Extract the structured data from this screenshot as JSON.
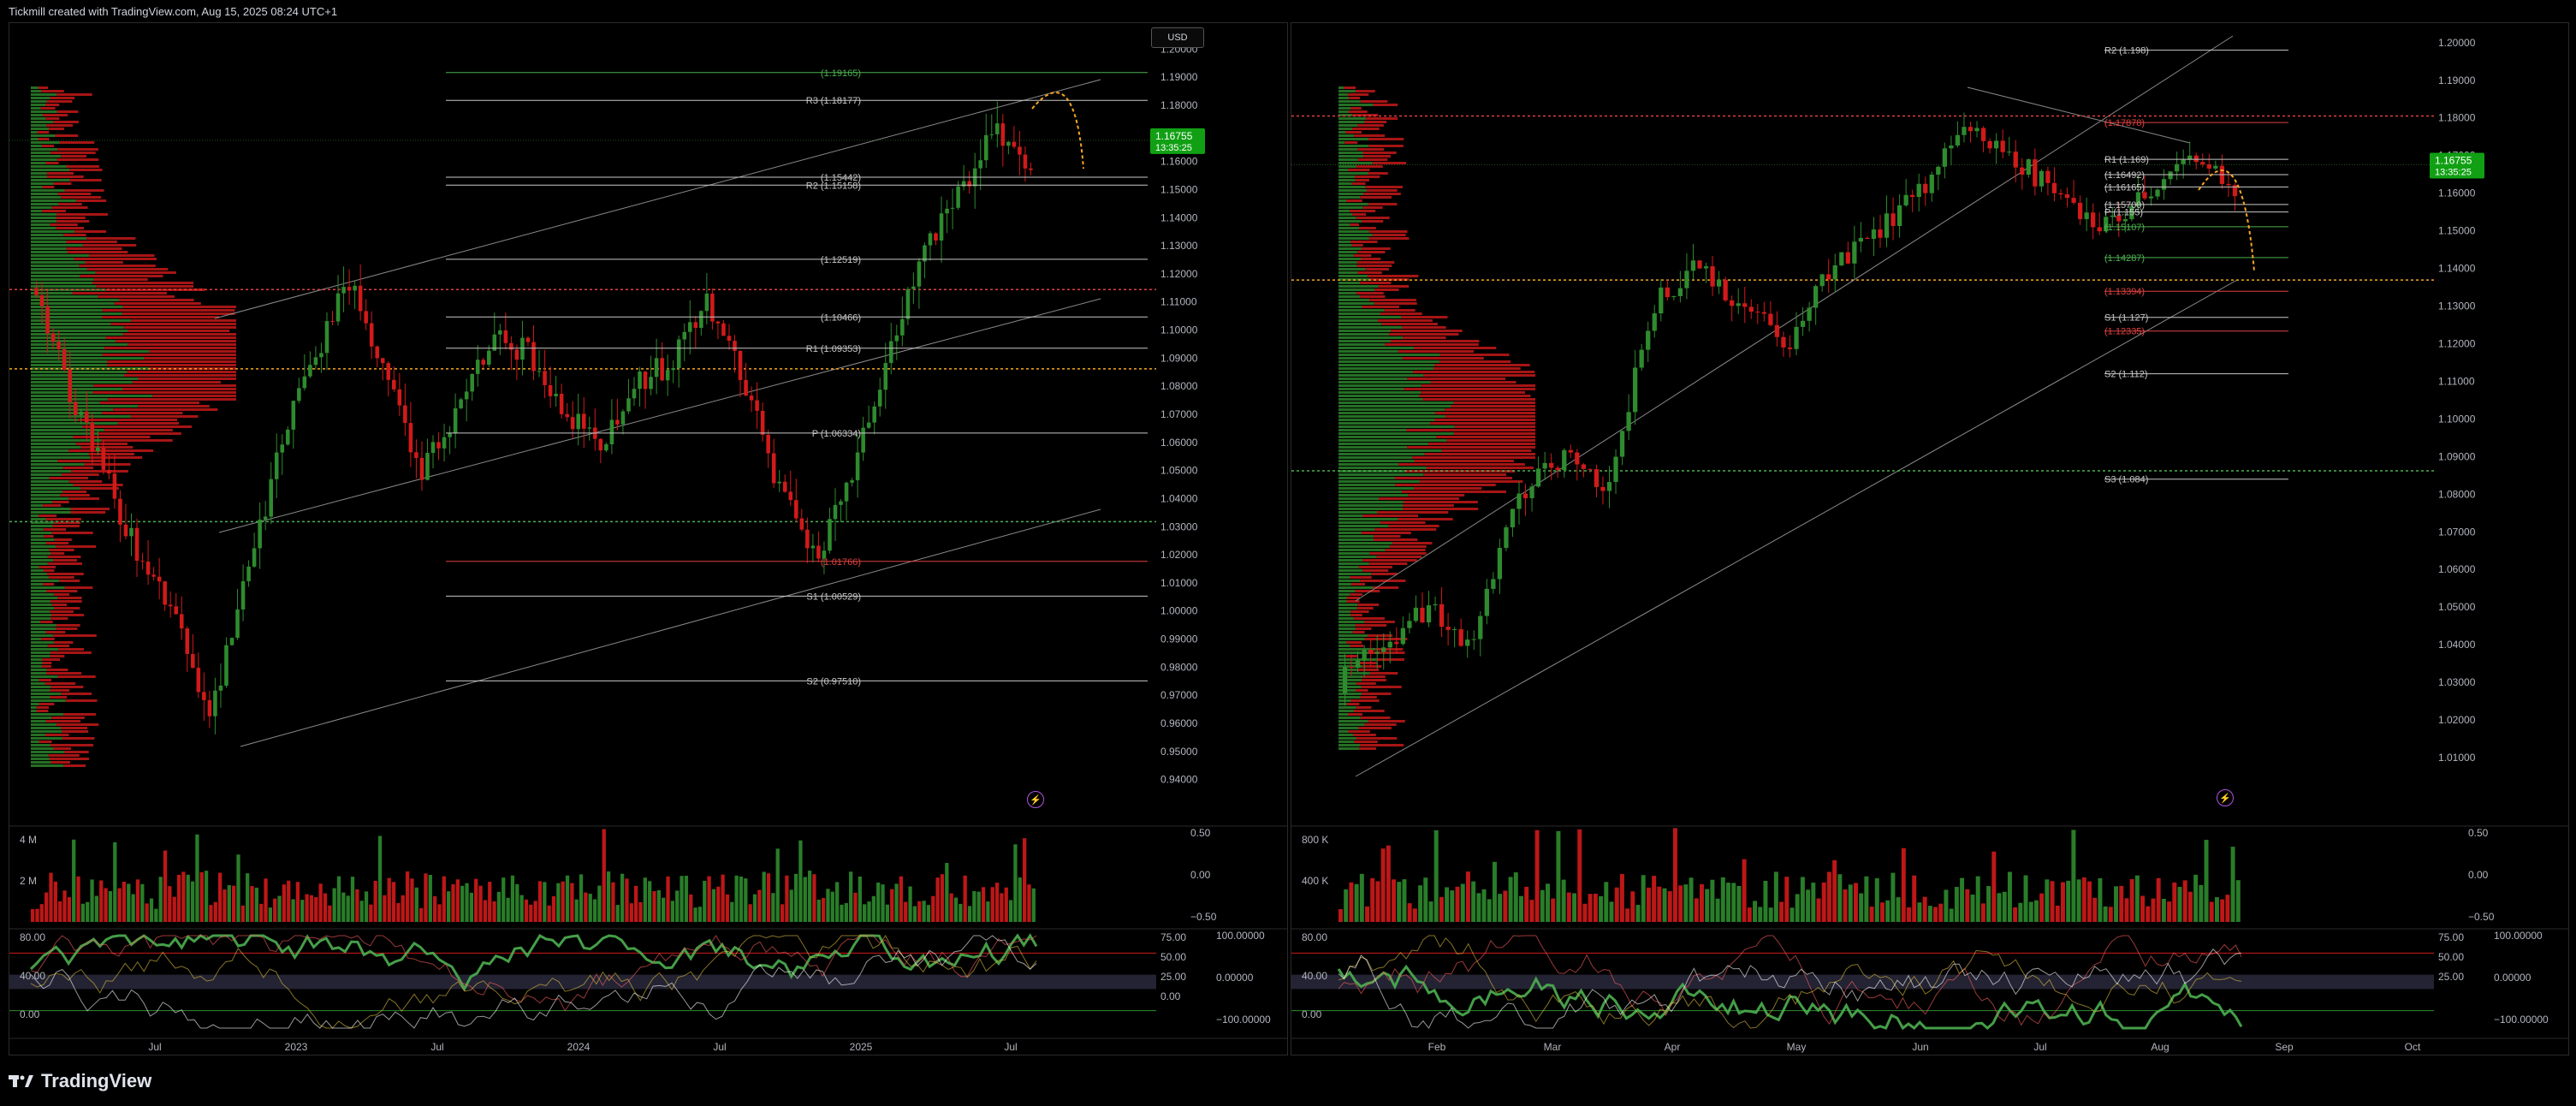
{
  "header": {
    "caption": "Tickmill created with TradingView.com, Aug 15, 2025 08:24 UTC+1"
  },
  "footer": {
    "brand": "TradingView"
  },
  "colors": {
    "up": "#2e8b2e",
    "down": "#d11a1a",
    "bg": "#000000",
    "grid": "#1a1a1a",
    "level": "#c8c8c8",
    "resistance": "#e04040",
    "support": "#4caf50",
    "poc": "#f5a623"
  },
  "chart_data": [
    {
      "type": "candlestick",
      "title": "",
      "currency_button": "USD",
      "price_ticks": [
        "1.20000",
        "1.19000",
        "1.18000",
        "1.17000",
        "1.16000",
        "1.15000",
        "1.14000",
        "1.13000",
        "1.12000",
        "1.11000",
        "1.10000",
        "1.09000",
        "1.08000",
        "1.07000",
        "1.06000",
        "1.05000",
        "1.04000",
        "1.03000",
        "1.02000",
        "1.01000",
        "1.00000",
        "0.99000",
        "0.98000",
        "0.97000",
        "0.96000",
        "0.95000",
        "0.94000"
      ],
      "ylim": [
        0.935,
        1.205
      ],
      "x_ticks": [
        "Jul",
        "2023",
        "Jul",
        "2024",
        "Jul",
        "2025",
        "Jul"
      ],
      "last_price": {
        "value": "1.16755",
        "countdown": "13:35:25"
      },
      "levels": [
        {
          "label": "(1.19165)",
          "value": 1.19165,
          "color": "support"
        },
        {
          "label": "R3 (1.18177)",
          "value": 1.18177,
          "color": "level"
        },
        {
          "label": "(1.15442)",
          "value": 1.15442,
          "color": "level"
        },
        {
          "label": "R2 (1.15158)",
          "value": 1.15158,
          "color": "level"
        },
        {
          "label": "(1.12519)",
          "value": 1.12519,
          "color": "level"
        },
        {
          "label": "(1.10466)",
          "value": 1.10466,
          "color": "level"
        },
        {
          "label": "R1 (1.09353)",
          "value": 1.09353,
          "color": "level"
        },
        {
          "label": "P (1.06334)",
          "value": 1.06334,
          "color": "level"
        },
        {
          "label": "(1.01766)",
          "value": 1.01766,
          "color": "resistance"
        },
        {
          "label": "S1 (1.00529)",
          "value": 1.00529,
          "color": "level"
        },
        {
          "label": "S2 (0.97510)",
          "value": 0.9751,
          "color": "level"
        }
      ],
      "dotted_levels": [
        {
          "value": 1.1144,
          "color": "resistance"
        },
        {
          "value": 1.0862,
          "color": "poc"
        },
        {
          "value": 1.0318,
          "color": "support"
        }
      ],
      "volume_ticks": [
        "4 M",
        "2 M"
      ],
      "volume_right_ticks": [
        "0.50",
        "0.00",
        "−0.50"
      ],
      "osc_left_ticks": [
        "80.00",
        "40.00",
        "0.00"
      ],
      "osc_right_ticks": [
        "100.00000",
        "0.00000",
        "−100.00000"
      ],
      "osc_mid_ticks": [
        "75.00",
        "50.00",
        "25.00",
        "0.00"
      ]
    },
    {
      "type": "candlestick",
      "title": "",
      "price_ticks": [
        "1.20000",
        "1.19000",
        "1.18000",
        "1.17000",
        "1.16000",
        "1.15000",
        "1.14000",
        "1.13000",
        "1.12000",
        "1.11000",
        "1.10000",
        "1.09000",
        "1.08000",
        "1.07000",
        "1.06000",
        "1.05000",
        "1.04000",
        "1.03000",
        "1.02000",
        "1.01000"
      ],
      "ylim": [
        1.005,
        1.202
      ],
      "x_ticks": [
        "Feb",
        "Mar",
        "Apr",
        "May",
        "Jun",
        "Jul",
        "Aug",
        "Sep",
        "Oct"
      ],
      "last_price": {
        "value": "1.16755",
        "countdown": "13:35:25"
      },
      "levels": [
        {
          "label": "R2 (1.198)",
          "value": 1.198,
          "color": "level"
        },
        {
          "label": "(1.17878)",
          "value": 1.17878,
          "color": "resistance"
        },
        {
          "label": "R1 (1.169)",
          "value": 1.169,
          "color": "level"
        },
        {
          "label": "(1.16492)",
          "value": 1.16492,
          "color": "level"
        },
        {
          "label": "(1.16165)",
          "value": 1.16165,
          "color": "level"
        },
        {
          "label": "(1.15700)",
          "value": 1.157,
          "color": "level"
        },
        {
          "label": "P (1.155)",
          "value": 1.155,
          "color": "level"
        },
        {
          "label": "(1.15107)",
          "value": 1.15107,
          "color": "support"
        },
        {
          "label": "(1.14287)",
          "value": 1.14287,
          "color": "support"
        },
        {
          "label": "(1.13394)",
          "value": 1.13394,
          "color": "resistance"
        },
        {
          "label": "S1 (1.127)",
          "value": 1.127,
          "color": "level"
        },
        {
          "label": "(1.12335)",
          "value": 1.12335,
          "color": "resistance"
        },
        {
          "label": "S2 (1.112)",
          "value": 1.112,
          "color": "level"
        },
        {
          "label": "S3 (1.084)",
          "value": 1.084,
          "color": "level"
        }
      ],
      "dotted_levels": [
        {
          "value": 1.1805,
          "color": "resistance"
        },
        {
          "value": 1.1369,
          "color": "poc"
        },
        {
          "value": 1.0862,
          "color": "support"
        }
      ],
      "volume_ticks": [
        "800 K",
        "400 K"
      ],
      "volume_right_ticks": [
        "0.50",
        "0.00",
        "−0.50"
      ],
      "osc_left_ticks": [
        "80.00",
        "40.00",
        "0.00"
      ],
      "osc_right_ticks": [
        "100.00000",
        "0.00000",
        "−100.00000"
      ],
      "osc_mid_ticks": [
        "75.00",
        "50.00",
        "25.00"
      ]
    }
  ]
}
